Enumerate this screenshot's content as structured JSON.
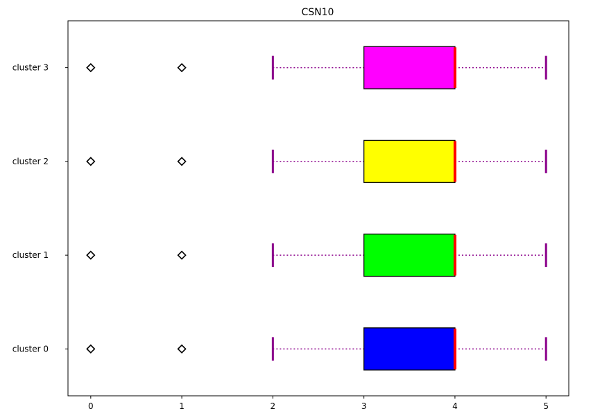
{
  "chart_data": {
    "type": "boxplot",
    "orientation": "horizontal",
    "title": "CSN10",
    "xlabel": "",
    "ylabel": "",
    "xlim": [
      -0.25,
      5.25
    ],
    "xticks": [
      0,
      1,
      2,
      3,
      4,
      5
    ],
    "grid": false,
    "categories": [
      "cluster 0",
      "cluster 1",
      "cluster 2",
      "cluster 3"
    ],
    "boxes": [
      {
        "label": "cluster 0",
        "whisker_low": 2,
        "q1": 3,
        "median": 4,
        "q3": 4,
        "whisker_high": 5,
        "outliers": [
          0,
          1
        ],
        "color": "#0000ff"
      },
      {
        "label": "cluster 1",
        "whisker_low": 2,
        "q1": 3,
        "median": 4,
        "q3": 4,
        "whisker_high": 5,
        "outliers": [
          0,
          1
        ],
        "color": "#00ff00"
      },
      {
        "label": "cluster 2",
        "whisker_low": 2,
        "q1": 3,
        "median": 4,
        "q3": 4,
        "whisker_high": 5,
        "outliers": [
          0,
          1
        ],
        "color": "#ffff00"
      },
      {
        "label": "cluster 3",
        "whisker_low": 2,
        "q1": 3,
        "median": 4,
        "q3": 4,
        "whisker_high": 5,
        "outliers": [
          0,
          1
        ],
        "color": "#ff00ff"
      }
    ],
    "style": {
      "whisker_color": "#8b008b",
      "median_color": "#ff0000",
      "box_edge_color": "#000000",
      "flier_marker": "diamond"
    }
  }
}
